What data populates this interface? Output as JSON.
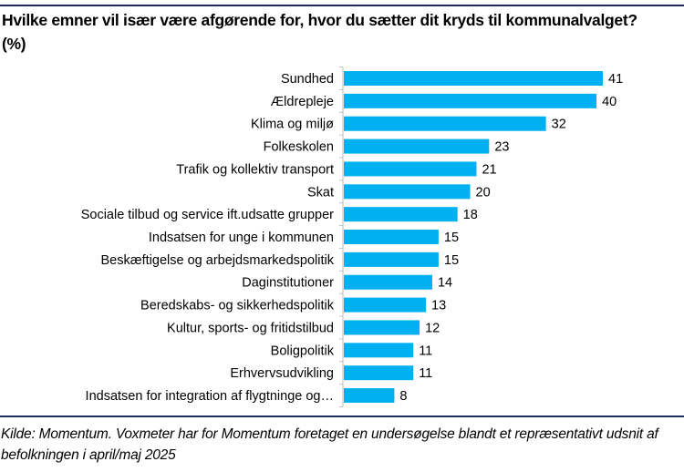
{
  "chart_data": {
    "type": "bar",
    "orientation": "horizontal",
    "title": "Hvilke emner vil især være afgørende for, hvor du sætter dit kryds til kommunalvalget?  (%)",
    "categories": [
      "Sundhed",
      "Ældrepleje",
      "Klima og miljø",
      "Folkeskolen",
      "Trafik og kollektiv transport",
      "Skat",
      "Sociale tilbud og service ift.udsatte grupper",
      "Indsatsen for unge i kommunen",
      "Beskæftigelse og arbejdsmarkedspolitik",
      "Daginstitutioner",
      "Beredskabs- og sikkerhedspolitik",
      "Kultur, sports- og fritidstilbud",
      "Boligpolitik",
      "Erhvervsudvikling",
      "Indsatsen for integration af flygtninge og…"
    ],
    "values": [
      41,
      40,
      32,
      23,
      21,
      20,
      18,
      15,
      15,
      14,
      13,
      12,
      11,
      11,
      8
    ],
    "xlim": [
      0,
      45
    ],
    "grid": false,
    "data_labels": true,
    "bar_color": "#00b0f0",
    "rule_color": "#1f2a5c"
  },
  "source": "Kilde: Momentum. Voxmeter har for Momentum foretaget en undersøgelse blandt et repræsentativt udsnit af befolkningen i april/maj 2025"
}
